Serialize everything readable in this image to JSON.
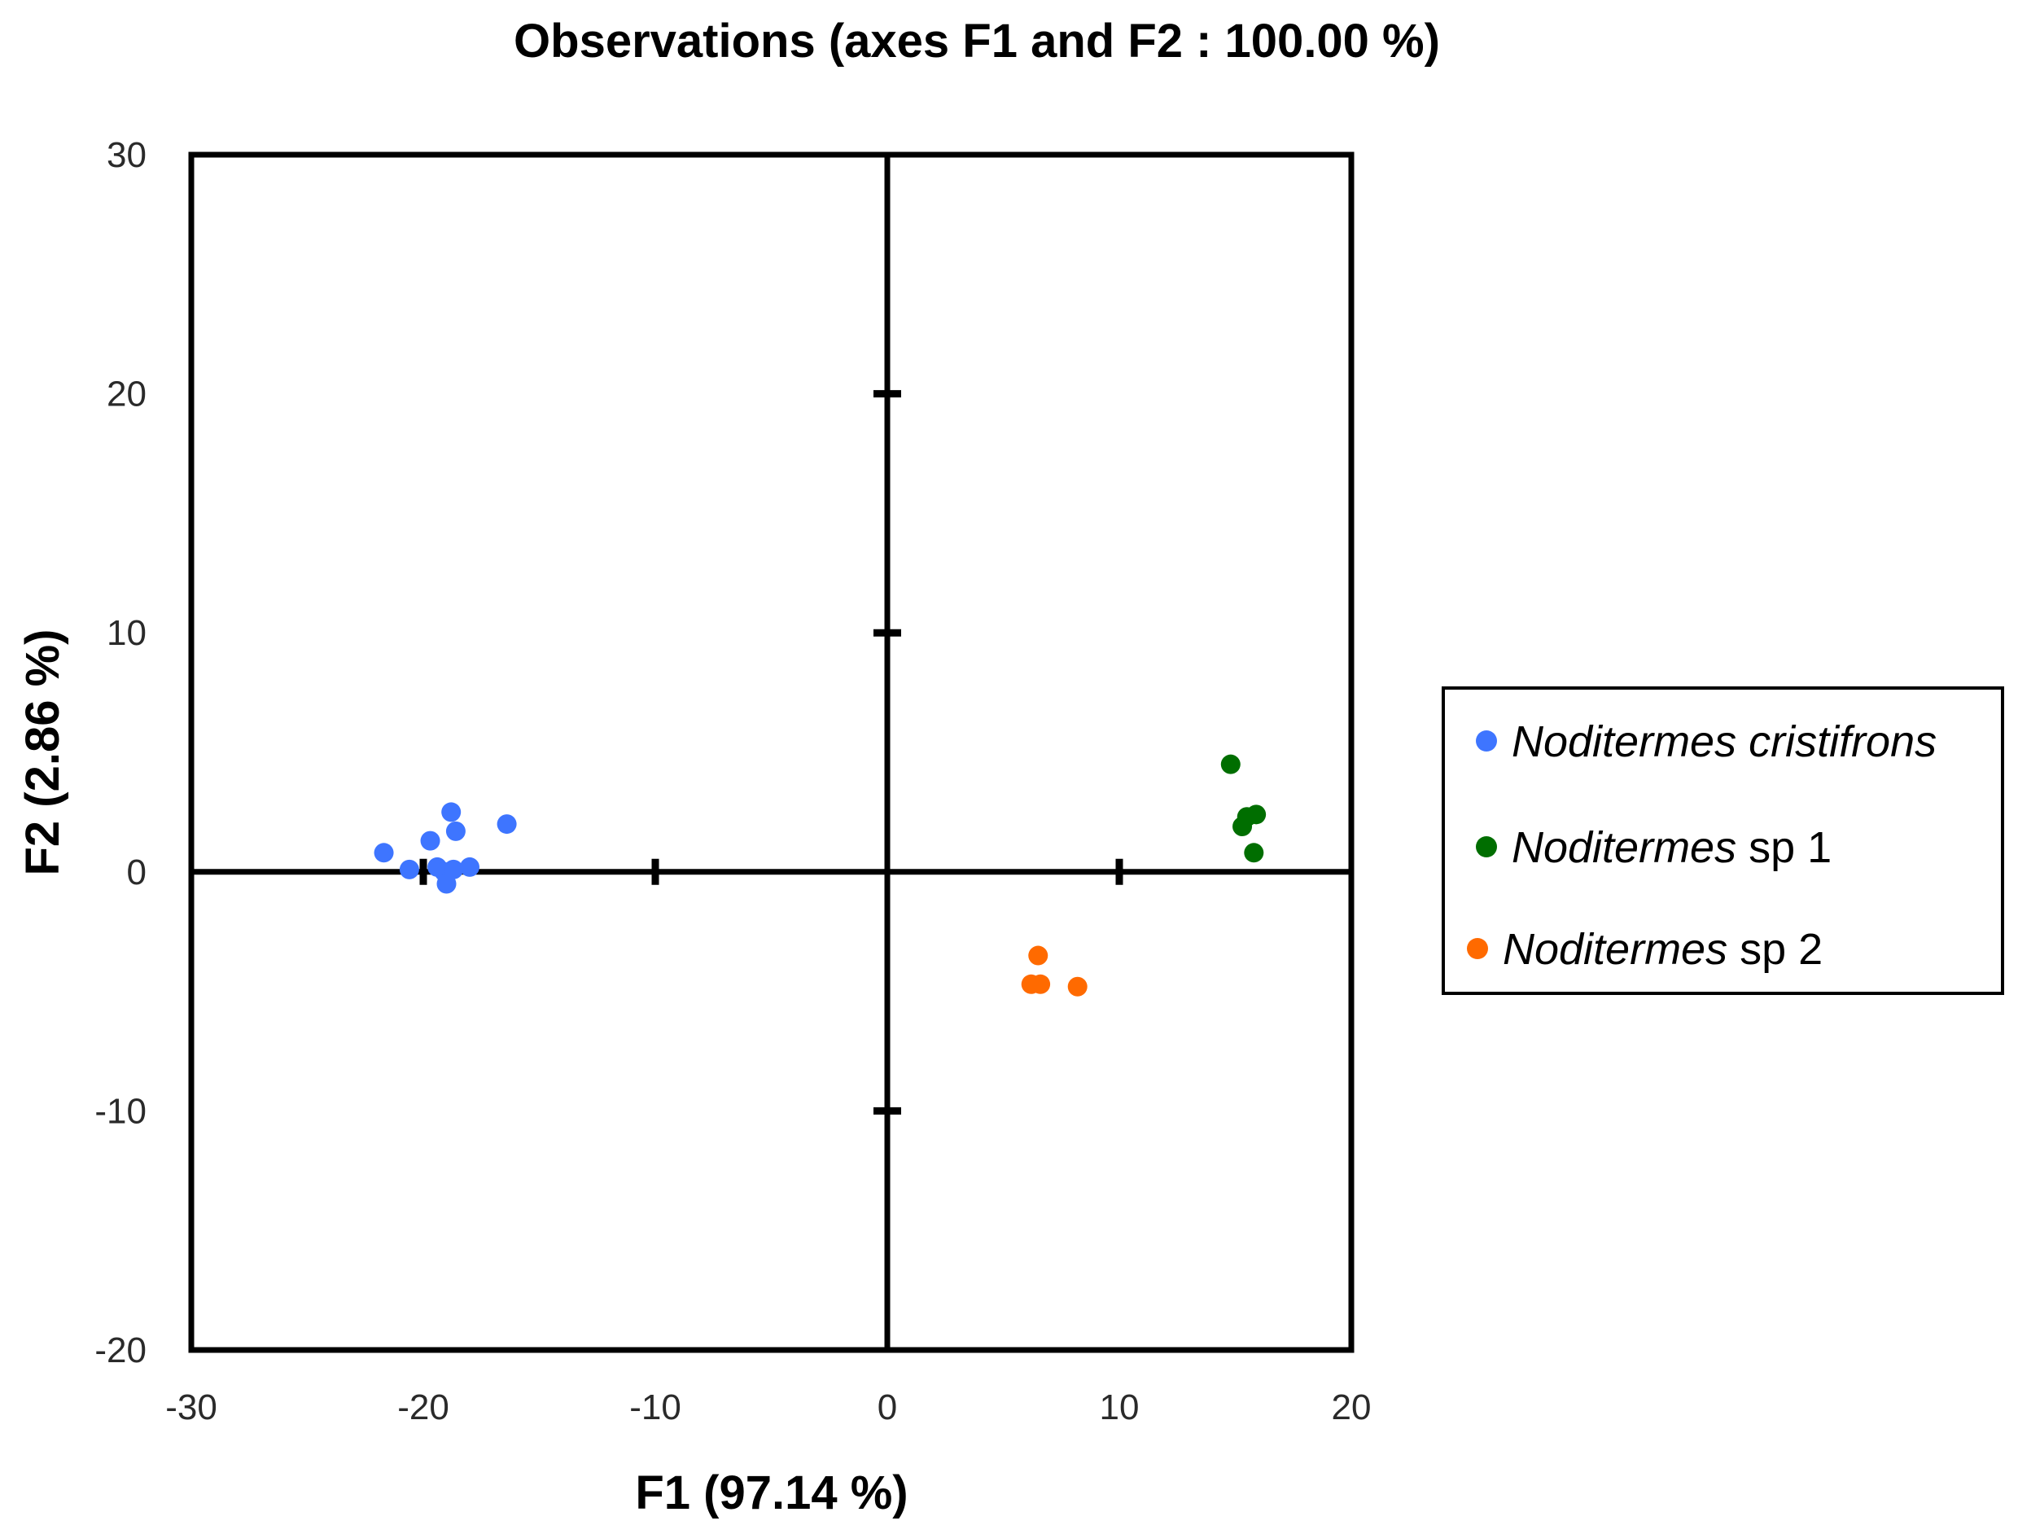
{
  "chart_data": {
    "type": "scatter",
    "title": "Observations (axes F1 and F2 : 100.00 %)",
    "xlabel": "F1 (97.14 %)",
    "ylabel": "F2 (2.86 %)",
    "xlim": [
      -30,
      20
    ],
    "ylim": [
      -20,
      30
    ],
    "x_ticks": [
      -30,
      -20,
      -10,
      0,
      10,
      20
    ],
    "y_ticks": [
      -20,
      -10,
      0,
      10,
      20,
      30
    ],
    "x_tick_labels": [
      "-30",
      "-20",
      "-10",
      "0",
      "10",
      "20"
    ],
    "y_tick_labels": [
      "-20",
      "-10",
      "0",
      "10",
      "20",
      "30"
    ],
    "legend_position": "right",
    "series": [
      {
        "name": "Noditermes cristifrons",
        "name_italic": "Noditermes cristifrons",
        "name_suffix": "",
        "color": "#3e75ff",
        "points": [
          [
            -21.7,
            0.8
          ],
          [
            -20.6,
            0.1
          ],
          [
            -19.7,
            1.3
          ],
          [
            -19.4,
            0.2
          ],
          [
            -19.1,
            0.0
          ],
          [
            -18.8,
            2.5
          ],
          [
            -18.6,
            1.7
          ],
          [
            -19.0,
            -0.5
          ],
          [
            -18.7,
            0.1
          ],
          [
            -18.0,
            0.2
          ],
          [
            -16.4,
            2.0
          ]
        ]
      },
      {
        "name": "Noditermes sp 1",
        "name_italic": "Noditermes",
        "name_suffix": " sp 1",
        "color": "#006e00",
        "points": [
          [
            14.8,
            4.5
          ],
          [
            15.3,
            1.9
          ],
          [
            15.5,
            2.3
          ],
          [
            15.9,
            2.4
          ],
          [
            15.8,
            0.8
          ]
        ]
      },
      {
        "name": "Noditermes sp 2",
        "name_italic": "Noditermes",
        "name_suffix": " sp 2",
        "color": "#ff6a00",
        "points": [
          [
            6.5,
            -3.5
          ],
          [
            6.2,
            -4.7
          ],
          [
            6.6,
            -4.7
          ],
          [
            8.2,
            -4.8
          ]
        ]
      }
    ]
  }
}
